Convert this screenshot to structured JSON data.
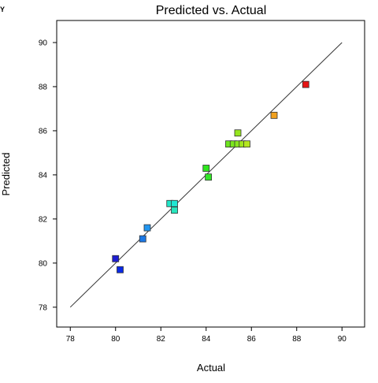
{
  "corner_label": "Y",
  "chart_data": {
    "type": "scatter",
    "title": "Predicted vs. Actual",
    "xlabel": "Actual",
    "ylabel": "Predicted",
    "xlim": [
      77.4,
      91.0
    ],
    "ylim": [
      77.1,
      91.0
    ],
    "x_ticks": [
      78,
      80,
      82,
      84,
      86,
      88,
      90
    ],
    "y_ticks": [
      78,
      80,
      82,
      84,
      86,
      88,
      90
    ],
    "reference_line": {
      "x": [
        78,
        90
      ],
      "y": [
        78,
        90
      ]
    },
    "points": [
      {
        "x": 80.0,
        "y": 80.2,
        "color": "#1e1ed2"
      },
      {
        "x": 80.2,
        "y": 79.7,
        "color": "#0a2ae6"
      },
      {
        "x": 81.2,
        "y": 81.1,
        "color": "#1a78e6"
      },
      {
        "x": 81.4,
        "y": 81.6,
        "color": "#2296f0"
      },
      {
        "x": 82.4,
        "y": 82.7,
        "color": "#1fe6c8"
      },
      {
        "x": 82.6,
        "y": 82.7,
        "color": "#1fe6d2"
      },
      {
        "x": 82.6,
        "y": 82.4,
        "color": "#28e6be"
      },
      {
        "x": 84.0,
        "y": 84.3,
        "color": "#2ee61e"
      },
      {
        "x": 84.1,
        "y": 83.9,
        "color": "#33e628"
      },
      {
        "x": 85.0,
        "y": 85.4,
        "color": "#6ee61e"
      },
      {
        "x": 85.2,
        "y": 85.4,
        "color": "#7ae61e"
      },
      {
        "x": 85.4,
        "y": 85.4,
        "color": "#88e61e"
      },
      {
        "x": 85.4,
        "y": 85.9,
        "color": "#96e61e"
      },
      {
        "x": 85.6,
        "y": 85.4,
        "color": "#a0e61e"
      },
      {
        "x": 85.8,
        "y": 85.4,
        "color": "#b4e61e"
      },
      {
        "x": 87.0,
        "y": 86.7,
        "color": "#f0a01e"
      },
      {
        "x": 88.4,
        "y": 88.1,
        "color": "#e61414"
      }
    ],
    "grid": false,
    "legend": "none"
  }
}
